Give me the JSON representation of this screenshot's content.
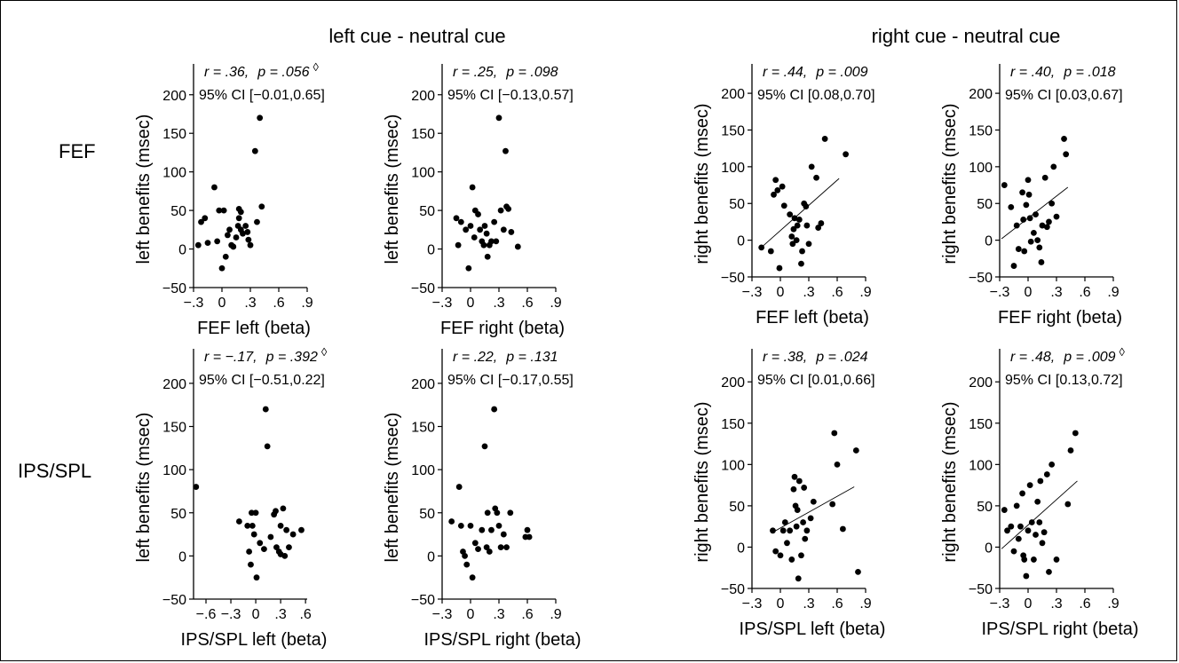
{
  "groups": [
    "left cue - neutral cue",
    "right cue - neutral cue"
  ],
  "rows": [
    "FEF",
    "IPS/SPL"
  ],
  "chart_data": [
    {
      "type": "scatter",
      "id": "fef-left-leftcue",
      "xlabel": "FEF left (beta)",
      "ylabel": "left benefits (msec)",
      "stats_line1": {
        "r": "r = .36,",
        "p": "p = .056"
      },
      "stats_line2": "95% CI [−0.01,0.65]",
      "marker": "◊",
      "xlim": [
        -0.3,
        0.9
      ],
      "ylim": [
        -50,
        240
      ],
      "xticks": [
        -0.3,
        0,
        0.3,
        0.6,
        0.9
      ],
      "xtick_labels": [
        "−.3",
        "0",
        ".3",
        ".6",
        ".9"
      ],
      "yticks": [
        -50,
        0,
        50,
        100,
        150,
        200
      ],
      "ytick_labels": [
        "−50",
        "0",
        "50",
        "100",
        "150",
        "200"
      ],
      "regression": null,
      "points": [
        [
          -0.25,
          5
        ],
        [
          -0.22,
          35
        ],
        [
          -0.18,
          40
        ],
        [
          -0.15,
          8
        ],
        [
          -0.08,
          80
        ],
        [
          -0.05,
          10
        ],
        [
          -0.03,
          50
        ],
        [
          0.0,
          -25
        ],
        [
          0.02,
          50
        ],
        [
          0.04,
          -10
        ],
        [
          0.06,
          18
        ],
        [
          0.08,
          25
        ],
        [
          0.1,
          5
        ],
        [
          0.12,
          3
        ],
        [
          0.15,
          15
        ],
        [
          0.17,
          30
        ],
        [
          0.18,
          40
        ],
        [
          0.18,
          52
        ],
        [
          0.2,
          48
        ],
        [
          0.2,
          25
        ],
        [
          0.22,
          20
        ],
        [
          0.25,
          30
        ],
        [
          0.27,
          22
        ],
        [
          0.28,
          12
        ],
        [
          0.3,
          5
        ],
        [
          0.35,
          127
        ],
        [
          0.37,
          35
        ],
        [
          0.4,
          170
        ],
        [
          0.42,
          55
        ]
      ]
    },
    {
      "type": "scatter",
      "id": "fef-right-leftcue",
      "xlabel": "FEF right (beta)",
      "ylabel": "left benefits (msec)",
      "stats_line1": {
        "r": "r = .25,",
        "p": "p = .098"
      },
      "stats_line2": "95% CI [−0.13,0.57]",
      "marker": "",
      "xlim": [
        -0.3,
        0.9
      ],
      "ylim": [
        -50,
        240
      ],
      "xticks": [
        -0.3,
        0,
        0.3,
        0.6,
        0.9
      ],
      "xtick_labels": [
        "−.3",
        "0",
        ".3",
        ".6",
        ".9"
      ],
      "yticks": [
        -50,
        0,
        50,
        100,
        150,
        200
      ],
      "ytick_labels": [
        "−50",
        "0",
        "50",
        "100",
        "150",
        "200"
      ],
      "regression": null,
      "points": [
        [
          -0.15,
          40
        ],
        [
          -0.13,
          5
        ],
        [
          -0.1,
          35
        ],
        [
          -0.05,
          25
        ],
        [
          -0.02,
          -25
        ],
        [
          0.0,
          30
        ],
        [
          0.02,
          80
        ],
        [
          0.04,
          15
        ],
        [
          0.05,
          50
        ],
        [
          0.08,
          45
        ],
        [
          0.1,
          25
        ],
        [
          0.12,
          10
        ],
        [
          0.14,
          5
        ],
        [
          0.15,
          30
        ],
        [
          0.17,
          20
        ],
        [
          0.18,
          -10
        ],
        [
          0.2,
          5
        ],
        [
          0.22,
          10
        ],
        [
          0.25,
          35
        ],
        [
          0.27,
          10
        ],
        [
          0.3,
          170
        ],
        [
          0.32,
          50
        ],
        [
          0.35,
          25
        ],
        [
          0.37,
          127
        ],
        [
          0.38,
          55
        ],
        [
          0.4,
          52
        ],
        [
          0.43,
          22
        ],
        [
          0.5,
          3
        ]
      ]
    },
    {
      "type": "scatter",
      "id": "fef-left-rightcue",
      "xlabel": "FEF left (beta)",
      "ylabel": "right benefits (msec)",
      "stats_line1": {
        "r": "r = .44,",
        "p": "p = .009"
      },
      "stats_line2": "95% CI [0.08,0.70]",
      "marker": "",
      "xlim": [
        -0.3,
        0.9
      ],
      "ylim": [
        -50,
        240
      ],
      "xticks": [
        -0.3,
        0,
        0.3,
        0.6,
        0.9
      ],
      "xtick_labels": [
        "−.3",
        "0",
        ".3",
        ".6",
        ".9"
      ],
      "yticks": [
        -50,
        0,
        50,
        100,
        150,
        200
      ],
      "ytick_labels": [
        "−50",
        "0",
        "50",
        "100",
        "150",
        "200"
      ],
      "regression": [
        [
          -0.22,
          -12
        ],
        [
          0.62,
          84
        ]
      ],
      "points": [
        [
          -0.2,
          -10
        ],
        [
          -0.1,
          -15
        ],
        [
          -0.07,
          62
        ],
        [
          -0.05,
          82
        ],
        [
          -0.03,
          68
        ],
        [
          -0.01,
          -38
        ],
        [
          0.02,
          73
        ],
        [
          0.04,
          47
        ],
        [
          0.1,
          35
        ],
        [
          0.12,
          5
        ],
        [
          0.13,
          -5
        ],
        [
          0.14,
          15
        ],
        [
          0.15,
          30
        ],
        [
          0.17,
          0
        ],
        [
          0.18,
          20
        ],
        [
          0.2,
          28
        ],
        [
          0.22,
          -32
        ],
        [
          0.23,
          -15
        ],
        [
          0.25,
          50
        ],
        [
          0.27,
          46
        ],
        [
          0.28,
          20
        ],
        [
          0.3,
          -5
        ],
        [
          0.33,
          100
        ],
        [
          0.38,
          85
        ],
        [
          0.4,
          17
        ],
        [
          0.43,
          23
        ],
        [
          0.47,
          138
        ],
        [
          0.69,
          117
        ]
      ]
    },
    {
      "type": "scatter",
      "id": "fef-right-rightcue",
      "xlabel": "FEF right (beta)",
      "ylabel": "right benefits (msec)",
      "stats_line1": {
        "r": "r = .40,",
        "p": "p = .018"
      },
      "stats_line2": "95% CI [0.03,0.67]",
      "marker": "",
      "xlim": [
        -0.3,
        0.9
      ],
      "ylim": [
        -50,
        240
      ],
      "xticks": [
        -0.3,
        0,
        0.3,
        0.6,
        0.9
      ],
      "xtick_labels": [
        "−.3",
        "0",
        ".3",
        ".6",
        ".9"
      ],
      "yticks": [
        -50,
        0,
        50,
        100,
        150,
        200
      ],
      "ytick_labels": [
        "−50",
        "0",
        "50",
        "100",
        "150",
        "200"
      ],
      "regression": [
        [
          -0.28,
          2
        ],
        [
          0.42,
          72
        ]
      ],
      "points": [
        [
          -0.25,
          75
        ],
        [
          -0.18,
          45
        ],
        [
          -0.15,
          -35
        ],
        [
          -0.12,
          20
        ],
        [
          -0.1,
          -12
        ],
        [
          -0.06,
          65
        ],
        [
          -0.05,
          28
        ],
        [
          -0.04,
          -15
        ],
        [
          -0.02,
          48
        ],
        [
          0.0,
          82
        ],
        [
          0.01,
          62
        ],
        [
          0.02,
          30
        ],
        [
          0.03,
          -2
        ],
        [
          0.06,
          10
        ],
        [
          0.08,
          35
        ],
        [
          0.1,
          0
        ],
        [
          0.12,
          -10
        ],
        [
          0.14,
          -30
        ],
        [
          0.15,
          20
        ],
        [
          0.18,
          85
        ],
        [
          0.2,
          18
        ],
        [
          0.22,
          25
        ],
        [
          0.25,
          50
        ],
        [
          0.27,
          100
        ],
        [
          0.3,
          32
        ],
        [
          0.38,
          138
        ],
        [
          0.4,
          117
        ]
      ]
    },
    {
      "type": "scatter",
      "id": "ips-left-leftcue",
      "xlabel": "IPS/SPL left (beta)",
      "ylabel": "left benefits (msec)",
      "stats_line1": {
        "r": "r = −.17,",
        "p": "p = .392"
      },
      "stats_line2": "95% CI [−0.51,0.22]",
      "marker": "◊",
      "xlim": [
        -0.75,
        0.62
      ],
      "ylim": [
        -50,
        240
      ],
      "xticks": [
        -0.6,
        -0.3,
        0,
        0.3,
        0.6
      ],
      "xtick_labels": [
        "−.6",
        "−.3",
        "0",
        ".3",
        ".6"
      ],
      "yticks": [
        -50,
        0,
        50,
        100,
        150,
        200
      ],
      "ytick_labels": [
        "−50",
        "0",
        "50",
        "100",
        "150",
        "200"
      ],
      "regression": null,
      "points": [
        [
          -0.72,
          80
        ],
        [
          -0.2,
          40
        ],
        [
          -0.1,
          35
        ],
        [
          -0.08,
          5
        ],
        [
          -0.06,
          -10
        ],
        [
          -0.05,
          50
        ],
        [
          -0.04,
          35
        ],
        [
          -0.02,
          25
        ],
        [
          0.0,
          50
        ],
        [
          0.01,
          -25
        ],
        [
          0.05,
          15
        ],
        [
          0.1,
          8
        ],
        [
          0.12,
          170
        ],
        [
          0.14,
          127
        ],
        [
          0.18,
          22
        ],
        [
          0.22,
          48
        ],
        [
          0.24,
          52
        ],
        [
          0.25,
          10
        ],
        [
          0.28,
          5
        ],
        [
          0.3,
          35
        ],
        [
          0.33,
          55
        ],
        [
          0.35,
          0
        ],
        [
          0.37,
          30
        ],
        [
          0.4,
          10
        ],
        [
          0.45,
          25
        ],
        [
          0.55,
          30
        ],
        [
          0.3,
          2
        ]
      ]
    },
    {
      "type": "scatter",
      "id": "ips-right-leftcue",
      "xlabel": "IPS/SPL right (beta)",
      "ylabel": "left benefits (msec)",
      "stats_line1": {
        "r": "r = .22,",
        "p": "p = .131"
      },
      "stats_line2": "95% CI [−0.17,0.55]",
      "marker": "",
      "xlim": [
        -0.3,
        0.9
      ],
      "ylim": [
        -50,
        240
      ],
      "xticks": [
        -0.3,
        0,
        0.3,
        0.6,
        0.9
      ],
      "xtick_labels": [
        "−.3",
        "0",
        ".3",
        ".6",
        ".9"
      ],
      "yticks": [
        -50,
        0,
        50,
        100,
        150,
        200
      ],
      "ytick_labels": [
        "−50",
        "0",
        "50",
        "100",
        "150",
        "200"
      ],
      "regression": null,
      "points": [
        [
          -0.2,
          40
        ],
        [
          -0.12,
          80
        ],
        [
          -0.1,
          35
        ],
        [
          -0.08,
          5
        ],
        [
          -0.06,
          0
        ],
        [
          -0.04,
          -10
        ],
        [
          0.0,
          35
        ],
        [
          0.02,
          -25
        ],
        [
          0.05,
          15
        ],
        [
          0.08,
          8
        ],
        [
          0.12,
          30
        ],
        [
          0.15,
          127
        ],
        [
          0.17,
          10
        ],
        [
          0.18,
          50
        ],
        [
          0.2,
          5
        ],
        [
          0.22,
          30
        ],
        [
          0.25,
          170
        ],
        [
          0.26,
          55
        ],
        [
          0.28,
          50
        ],
        [
          0.3,
          35
        ],
        [
          0.32,
          10
        ],
        [
          0.35,
          25
        ],
        [
          0.38,
          10
        ],
        [
          0.42,
          50
        ],
        [
          0.58,
          22
        ],
        [
          0.6,
          30
        ],
        [
          0.62,
          22
        ]
      ]
    },
    {
      "type": "scatter",
      "id": "ips-left-rightcue",
      "xlabel": "IPS/SPL left (beta)",
      "ylabel": "right benefits (msec)",
      "stats_line1": {
        "r": "r = .38,",
        "p": "p = .024"
      },
      "stats_line2": "95% CI [0.01,0.66]",
      "marker": "",
      "xlim": [
        -0.3,
        0.9
      ],
      "ylim": [
        -50,
        240
      ],
      "xticks": [
        -0.3,
        0,
        0.3,
        0.6,
        0.9
      ],
      "xtick_labels": [
        "−.3",
        "0",
        ".3",
        ".6",
        ".9"
      ],
      "yticks": [
        -50,
        0,
        50,
        100,
        150,
        200
      ],
      "ytick_labels": [
        "−50",
        "0",
        "50",
        "100",
        "150",
        "200"
      ],
      "regression": [
        [
          -0.08,
          18
        ],
        [
          0.78,
          73
        ]
      ],
      "points": [
        [
          -0.08,
          20
        ],
        [
          -0.05,
          -5
        ],
        [
          0.0,
          -10
        ],
        [
          0.03,
          20
        ],
        [
          0.05,
          30
        ],
        [
          0.07,
          5
        ],
        [
          0.1,
          20
        ],
        [
          0.12,
          -15
        ],
        [
          0.14,
          70
        ],
        [
          0.15,
          85
        ],
        [
          0.16,
          50
        ],
        [
          0.17,
          25
        ],
        [
          0.18,
          45
        ],
        [
          0.19,
          -38
        ],
        [
          0.2,
          80
        ],
        [
          0.22,
          -10
        ],
        [
          0.24,
          30
        ],
        [
          0.25,
          72
        ],
        [
          0.26,
          10
        ],
        [
          0.28,
          20
        ],
        [
          0.32,
          35
        ],
        [
          0.35,
          55
        ],
        [
          0.55,
          52
        ],
        [
          0.57,
          138
        ],
        [
          0.6,
          100
        ],
        [
          0.66,
          22
        ],
        [
          0.8,
          117
        ],
        [
          0.82,
          -30
        ]
      ]
    },
    {
      "type": "scatter",
      "id": "ips-right-rightcue",
      "xlabel": "IPS/SPL right (beta)",
      "ylabel": "right benefits (msec)",
      "stats_line1": {
        "r": "r = .48,",
        "p": "p = .009"
      },
      "stats_line2": "95% CI [0.13,0.72]",
      "marker": "◊",
      "xlim": [
        -0.3,
        0.9
      ],
      "ylim": [
        -50,
        240
      ],
      "xticks": [
        -0.3,
        0,
        0.3,
        0.6,
        0.9
      ],
      "xtick_labels": [
        "−.3",
        "0",
        ".3",
        ".6",
        ".9"
      ],
      "yticks": [
        -50,
        0,
        50,
        100,
        150,
        200
      ],
      "ytick_labels": [
        "−50",
        "0",
        "50",
        "100",
        "150",
        "200"
      ],
      "regression": [
        [
          -0.28,
          -2
        ],
        [
          0.52,
          80
        ]
      ],
      "points": [
        [
          -0.25,
          45
        ],
        [
          -0.22,
          20
        ],
        [
          -0.18,
          25
        ],
        [
          -0.15,
          -5
        ],
        [
          -0.12,
          50
        ],
        [
          -0.1,
          10
        ],
        [
          -0.08,
          25
        ],
        [
          -0.06,
          65
        ],
        [
          -0.05,
          -10
        ],
        [
          -0.04,
          -15
        ],
        [
          -0.02,
          -35
        ],
        [
          0.0,
          20
        ],
        [
          0.02,
          75
        ],
        [
          0.04,
          30
        ],
        [
          0.06,
          -15
        ],
        [
          0.08,
          15
        ],
        [
          0.1,
          55
        ],
        [
          0.12,
          30
        ],
        [
          0.13,
          80
        ],
        [
          0.15,
          5
        ],
        [
          0.17,
          18
        ],
        [
          0.2,
          88
        ],
        [
          0.22,
          -30
        ],
        [
          0.25,
          100
        ],
        [
          0.3,
          -15
        ],
        [
          0.42,
          52
        ],
        [
          0.45,
          117
        ],
        [
          0.5,
          138
        ]
      ]
    }
  ]
}
